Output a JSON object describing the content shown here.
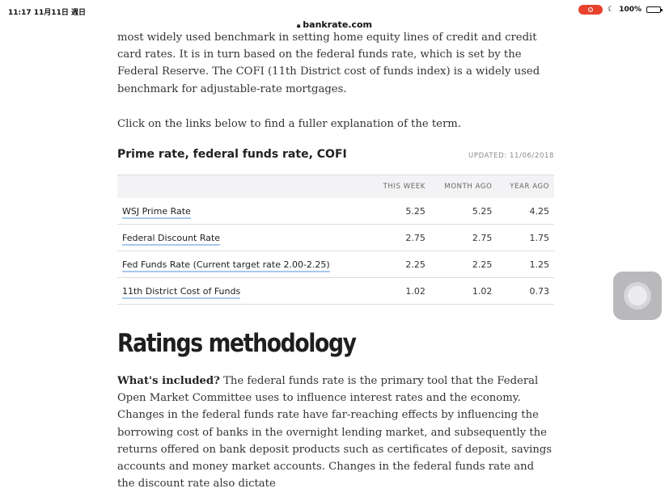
{
  "status_bar": {
    "time": "11:17  11月11日 週日",
    "battery": "100%",
    "battery_level_percent": 100
  },
  "browser": {
    "url": "bankrate.com"
  },
  "article": {
    "para_top": "most widely used benchmark in setting home equity lines of credit and credit card rates. It is in turn based on the federal funds rate, which is set by the Federal Reserve. The COFI (11th District cost of funds index) is a widely used benchmark for adjustable-rate mortgages.",
    "para_links": "Click on the links below to find a fuller explanation of the term.",
    "table": {
      "title": "Prime rate, federal funds rate, COFI",
      "updated": "UPDATED: 11/06/2018",
      "columns": [
        "",
        "THIS WEEK",
        "MONTH AGO",
        "YEAR AGO"
      ],
      "rows": [
        {
          "name": "WSJ Prime Rate",
          "this_week": "5.25",
          "month_ago": "5.25",
          "year_ago": "4.25"
        },
        {
          "name": "Federal Discount Rate",
          "this_week": "2.75",
          "month_ago": "2.75",
          "year_ago": "1.75"
        },
        {
          "name": "Fed Funds Rate (Current target rate 2.00-2.25)",
          "this_week": "2.25",
          "month_ago": "2.25",
          "year_ago": "1.25"
        },
        {
          "name": "11th District Cost of Funds",
          "this_week": "1.02",
          "month_ago": "1.02",
          "year_ago": "0.73"
        }
      ]
    },
    "section_heading": "Ratings methodology",
    "included_label": "What's included?",
    "included_text": " The federal funds rate is the primary tool that the Federal Open Market Committee uses to influence interest rates and the economy. Changes in the federal funds rate have far-reaching effects by influencing the borrowing cost of banks in the overnight lending market, and subsequently the returns offered on bank deposit products such as certificates of deposit, savings accounts and money market accounts. Changes in the federal funds rate and the discount rate also dictate"
  },
  "icons": {
    "record": "screen-record-icon",
    "moon": "do-not-disturb-moon-icon",
    "battery": "battery-icon",
    "lock": "lock-icon",
    "assistive_touch": "assistive-touch-icon"
  },
  "colors": {
    "record_pill": "#e8412c",
    "link_underline": "#a9c8ee",
    "table_header_bg": "#f3f3f5"
  }
}
